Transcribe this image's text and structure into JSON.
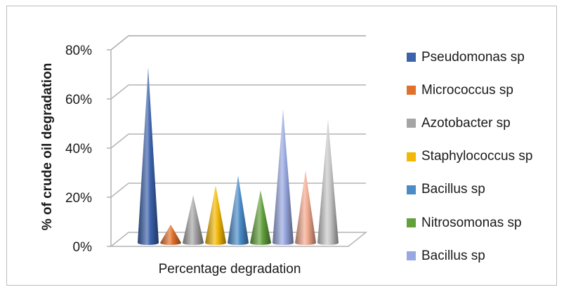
{
  "chart_data": {
    "type": "bar",
    "style": "3d-cone",
    "ylabel": "% of crude oil degradation",
    "xlabel": "Percentage degradation",
    "ylim": [
      0,
      80
    ],
    "yticks": [
      "0%",
      "20%",
      "40%",
      "60%",
      "80%"
    ],
    "grid": true,
    "legend_position": "right",
    "series": [
      {
        "name": "Pseudomonas sp",
        "value": 70,
        "color": "#3b62ab"
      },
      {
        "name": "Micrococcus sp",
        "value": 6,
        "color": "#e0712c"
      },
      {
        "name": "Azotobacter sp",
        "value": 18,
        "color": "#a5a5a5"
      },
      {
        "name": "Staphylococcus sp",
        "value": 22,
        "color": "#f2b805"
      },
      {
        "name": "Bacillus sp",
        "value": 26,
        "color": "#4a8bc8"
      },
      {
        "name": "Nitrosomonas sp",
        "value": 20,
        "color": "#62a03c"
      },
      {
        "name": "Bacillus sp",
        "value": 53,
        "color": "#98a8e0"
      },
      {
        "name": "",
        "value": 28,
        "color": "#f3a98f"
      },
      {
        "name": "",
        "value": 49,
        "color": "#c7c7c7"
      }
    ]
  }
}
